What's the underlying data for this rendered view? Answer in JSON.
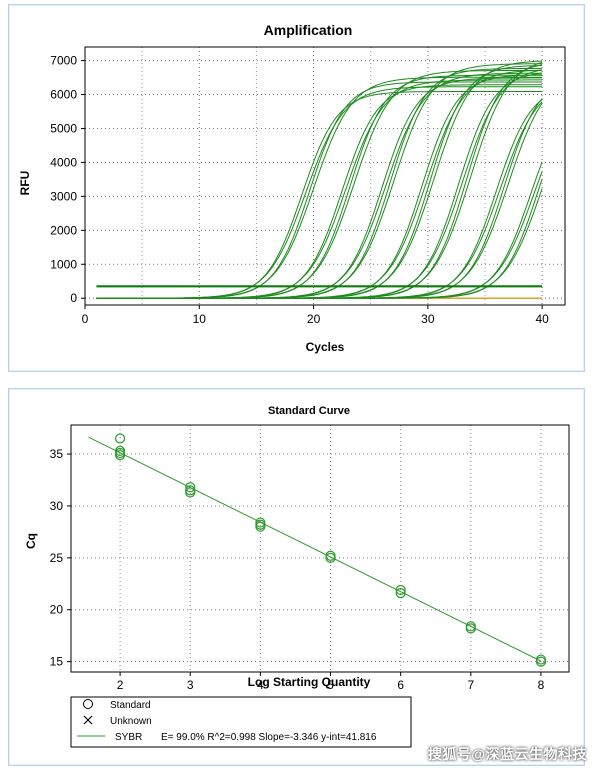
{
  "chart_data": [
    {
      "type": "line",
      "title": "Amplification",
      "xlabel": "Cycles",
      "ylabel": "RFU",
      "xlim": [
        0,
        42
      ],
      "ylim": [
        -200,
        7400
      ],
      "xticks": [
        0,
        10,
        20,
        30,
        40
      ],
      "yticks": [
        0,
        1000,
        2000,
        3000,
        4000,
        5000,
        6000,
        7000
      ],
      "grid": "dotted",
      "threshold": 350,
      "series_color": "#1e8a1e",
      "baseline_color": "#e0a030",
      "curve_groups": [
        {
          "midpoint_cycle": 19.5,
          "plateau": 6300,
          "count": 4
        },
        {
          "midpoint_cycle": 23.0,
          "plateau": 6500,
          "count": 4
        },
        {
          "midpoint_cycle": 26.5,
          "plateau": 6700,
          "count": 4
        },
        {
          "midpoint_cycle": 30.0,
          "plateau": 6800,
          "count": 4
        },
        {
          "midpoint_cycle": 33.2,
          "plateau": 6900,
          "count": 4
        },
        {
          "midpoint_cycle": 36.5,
          "plateau": 6500,
          "count": 4
        },
        {
          "midpoint_cycle": 39.5,
          "plateau": 6300,
          "count": 4
        }
      ]
    },
    {
      "type": "scatter",
      "title": "Standard Curve",
      "xlabel": "Log Starting Quantity",
      "ylabel": "Cq",
      "xlim": [
        1.3,
        8.4
      ],
      "ylim": [
        14,
        37.8
      ],
      "xticks": [
        2,
        3,
        4,
        5,
        6,
        7,
        8
      ],
      "yticks": [
        15,
        20,
        25,
        30,
        35
      ],
      "grid": "dotted",
      "points": [
        {
          "x": 2,
          "y": 36.5
        },
        {
          "x": 2,
          "y": 35.3
        },
        {
          "x": 2,
          "y": 35.1
        },
        {
          "x": 2,
          "y": 34.9
        },
        {
          "x": 3,
          "y": 31.8
        },
        {
          "x": 3,
          "y": 31.5
        },
        {
          "x": 3,
          "y": 31.3
        },
        {
          "x": 4,
          "y": 28.4
        },
        {
          "x": 4,
          "y": 28.2
        },
        {
          "x": 4,
          "y": 28.0
        },
        {
          "x": 5,
          "y": 25.2
        },
        {
          "x": 5,
          "y": 25.0
        },
        {
          "x": 6,
          "y": 21.9
        },
        {
          "x": 6,
          "y": 21.6
        },
        {
          "x": 7,
          "y": 18.4
        },
        {
          "x": 7,
          "y": 18.2
        },
        {
          "x": 8,
          "y": 15.2
        },
        {
          "x": 8,
          "y": 15.0
        }
      ],
      "fit": {
        "slope": -3.346,
        "intercept": 41.816,
        "x_range": [
          1.55,
          8.0
        ]
      },
      "legend": {
        "position": "bottom-left",
        "entries": [
          {
            "symbol": "circle",
            "label": "Standard"
          },
          {
            "symbol": "cross",
            "label": "Unknown"
          },
          {
            "symbol": "line",
            "label": "SYBR",
            "detail": "E= 99.0% R^2=0.998 Slope=-3.346 y-int=41.816"
          }
        ]
      }
    }
  ],
  "watermark": "搜狐号@深蓝云生物科技"
}
